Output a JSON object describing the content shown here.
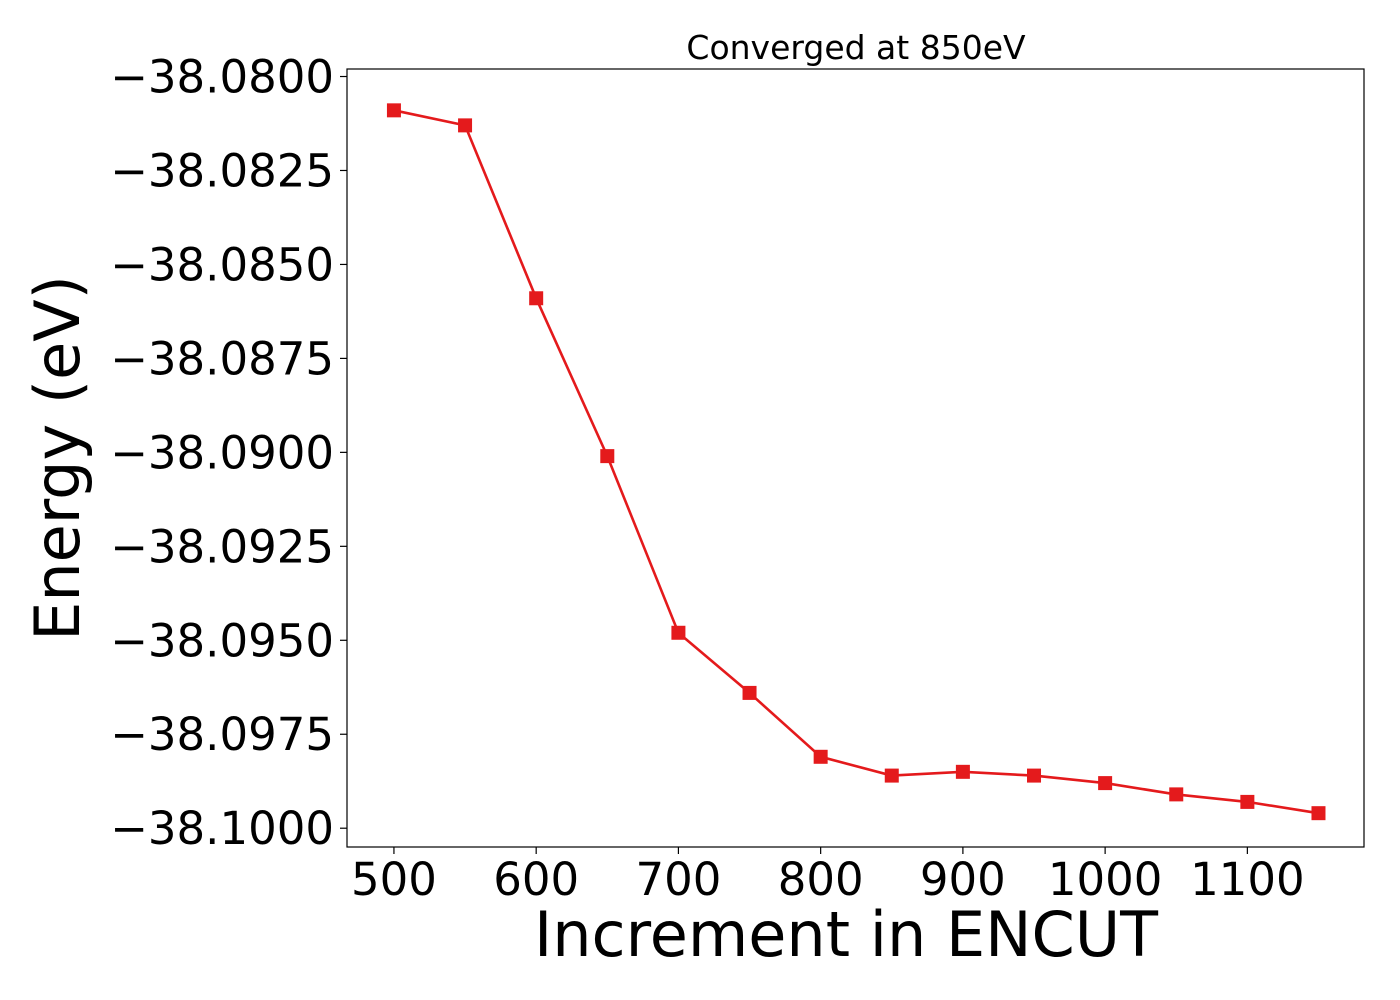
{
  "chart_data": {
    "type": "line",
    "title": "Converged at 850eV",
    "xlabel": "Increment in ENCUT",
    "ylabel": "Energy (eV)",
    "xlim": [
      467,
      1182
    ],
    "ylim": [
      -38.1005,
      -38.0798
    ],
    "x_ticks": [
      500,
      600,
      700,
      800,
      900,
      1000,
      1100
    ],
    "x_tick_labels": [
      "500",
      "600",
      "700",
      "800",
      "900",
      "1000",
      "1100"
    ],
    "y_ticks": [
      -38.08,
      -38.0825,
      -38.085,
      -38.0875,
      -38.09,
      -38.0925,
      -38.095,
      -38.0975,
      -38.1
    ],
    "y_tick_labels": [
      "−38.0800",
      "−38.0825",
      "−38.0850",
      "−38.0875",
      "−38.0900",
      "−38.0925",
      "−38.0950",
      "−38.0975",
      "−38.1000"
    ],
    "grid": false,
    "series": [
      {
        "color": "#e41a1c",
        "marker": "square",
        "x": [
          500,
          550,
          600,
          650,
          700,
          750,
          800,
          850,
          900,
          950,
          1000,
          1050,
          1100,
          1150
        ],
        "y": [
          -38.0809,
          -38.0813,
          -38.0859,
          -38.0901,
          -38.0948,
          -38.0964,
          -38.0981,
          -38.0986,
          -38.0985,
          -38.0986,
          -38.0988,
          -38.0991,
          -38.0993,
          -38.0996
        ]
      }
    ]
  }
}
